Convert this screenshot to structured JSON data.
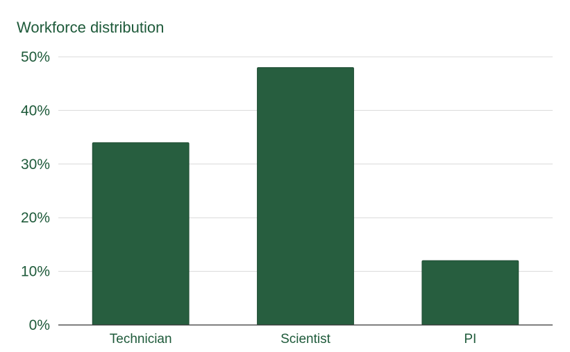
{
  "chart_data": {
    "type": "bar",
    "title": "Workforce distribution",
    "xlabel": "",
    "ylabel": "",
    "categories": [
      "Technician",
      "Scientist",
      "PI"
    ],
    "series": [
      {
        "values": [
          34,
          48,
          12
        ]
      }
    ],
    "y_ticks": [
      "0%",
      "10%",
      "20%",
      "30%",
      "40%",
      "50%"
    ],
    "ylim": [
      0,
      50
    ],
    "grid": true,
    "legend": "none",
    "colors": {
      "bar": "#275e3f",
      "bar_stroke": "#1d4a31",
      "text": "#1e5a3a",
      "grid": "#d9d9d9",
      "axis": "#333333"
    }
  }
}
